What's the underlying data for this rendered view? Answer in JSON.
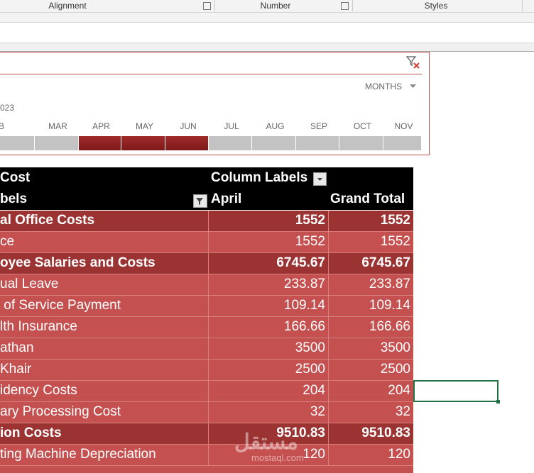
{
  "ribbon": {
    "groups": [
      "Alignment",
      "Number",
      "Styles"
    ]
  },
  "timeline": {
    "level": "MONTHS",
    "year": "023",
    "months": [
      "EB",
      "MAR",
      "APR",
      "MAY",
      "JUN",
      "JUL",
      "AUG",
      "SEP",
      "OCT",
      "NOV"
    ],
    "selected": [
      "APR",
      "MAY",
      "JUN"
    ]
  },
  "pivot": {
    "header": {
      "value_field": "Cost",
      "column_labels": "Column Labels",
      "row_labels": "bels",
      "column": "April",
      "total": "Grand Total"
    },
    "groups": [
      {
        "label": "al Office Costs",
        "april": "1552",
        "total": "1552",
        "items": [
          {
            "label": "ce",
            "april": "1552",
            "total": "1552"
          }
        ]
      },
      {
        "label": "oyee Salaries and Costs",
        "april": "6745.67",
        "total": "6745.67",
        "items": [
          {
            "label": "ual Leave",
            "april": "233.87",
            "total": "233.87"
          },
          {
            "label": " of Service Payment",
            "april": "109.14",
            "total": "109.14"
          },
          {
            "label": "lth Insurance",
            "april": "166.66",
            "total": "166.66"
          },
          {
            "label": "athan",
            "april": "3500",
            "total": "3500"
          },
          {
            "label": "Khair",
            "april": "2500",
            "total": "2500"
          },
          {
            "label": "idency Costs",
            "april": "204",
            "total": "204"
          },
          {
            "label": "ary Processing Cost",
            "april": "32",
            "total": "32"
          }
        ]
      },
      {
        "label": "ion Costs",
        "april": "9510.83",
        "total": "9510.83",
        "items": [
          {
            "label": "ting Machine Depreciation",
            "april": "120",
            "total": "120"
          }
        ]
      }
    ]
  },
  "watermark": {
    "arabic": "مستقل",
    "latin": "mostaql.com"
  }
}
